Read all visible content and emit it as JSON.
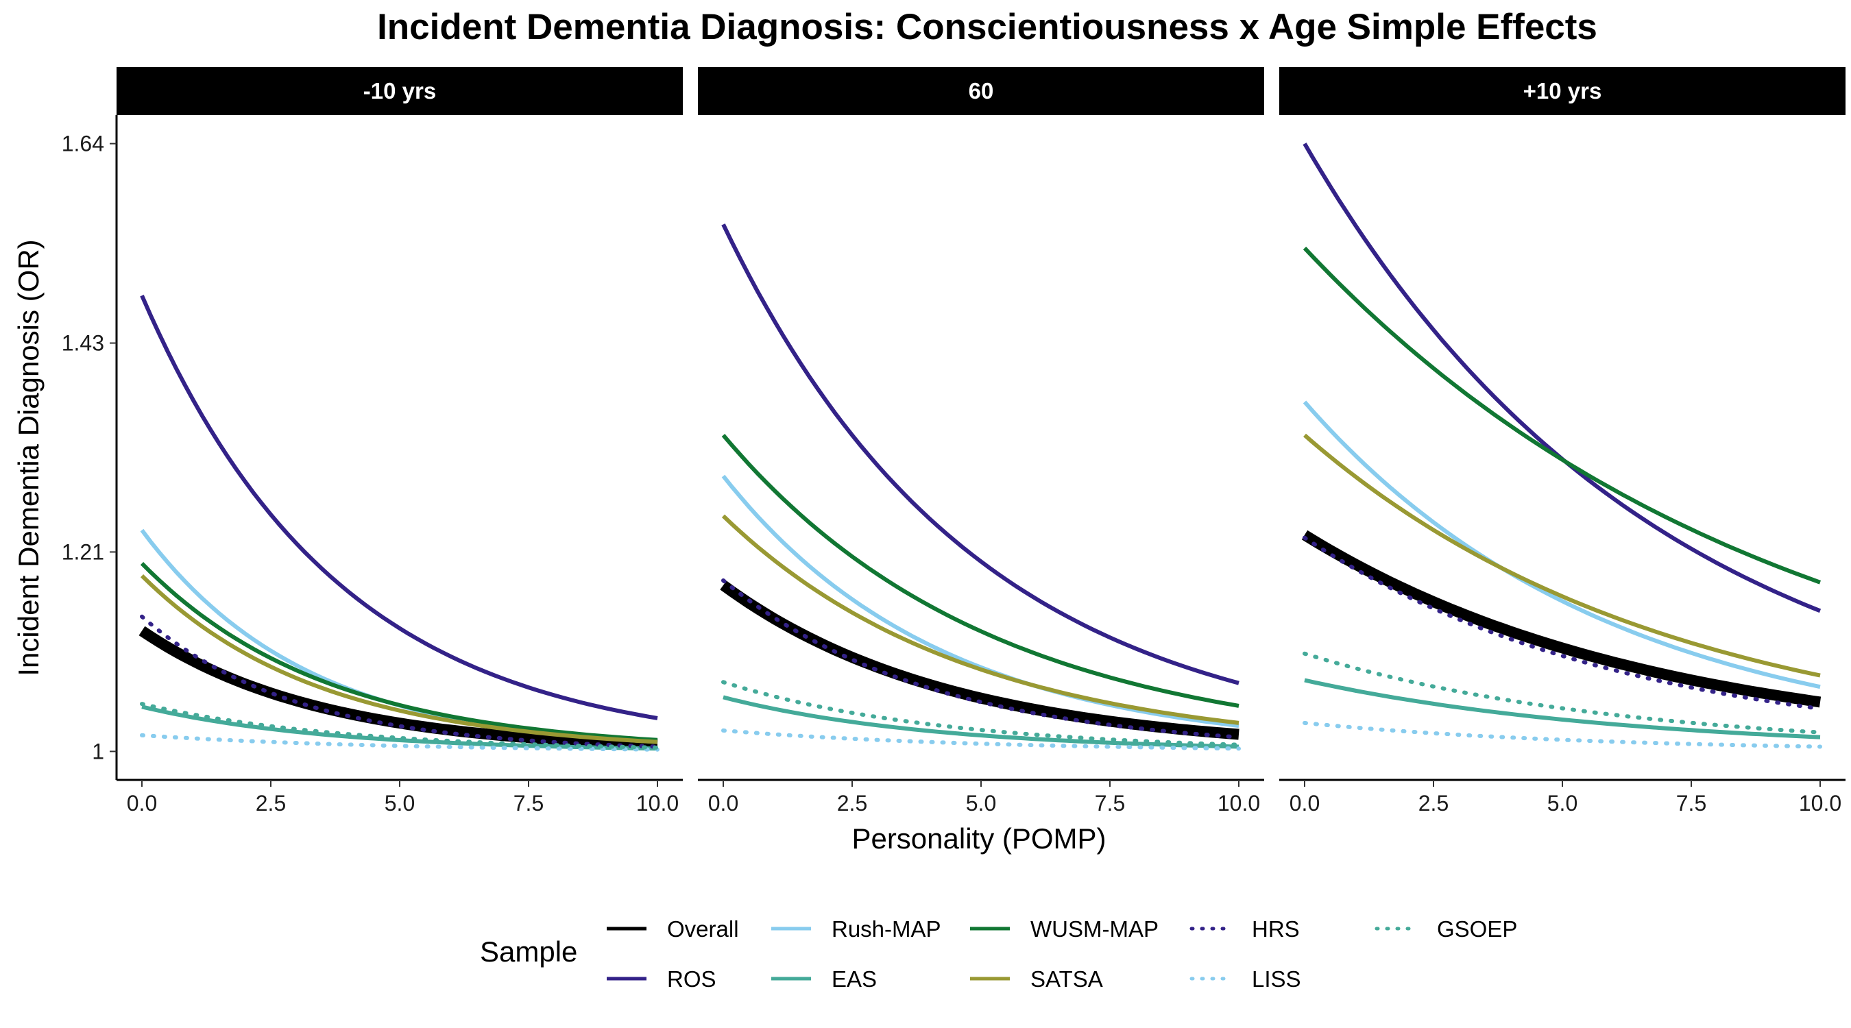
{
  "chart_data": {
    "type": "line",
    "title": "Incident Dementia Diagnosis: Conscientiousness x Age Simple Effects",
    "xlabel": "Personality (POMP)",
    "ylabel": "Incident Dementia Diagnosis (OR)",
    "xlim": [
      0,
      10
    ],
    "ylim": [
      0.97,
      1.67
    ],
    "x_ticks": [
      0,
      2.5,
      5,
      7.5,
      10
    ],
    "x_tick_labels": [
      "0.0",
      "2.5",
      "5.0",
      "7.5",
      "10.0"
    ],
    "y_ticks": [
      1,
      1.21,
      1.43,
      1.64
    ],
    "y_tick_labels": [
      "1",
      "1.21",
      "1.43",
      "1.64"
    ],
    "grid": false,
    "legend_title": "Sample",
    "legend_position": "bottom",
    "facets": [
      "-10 yrs",
      "60",
      "+10 yrs"
    ],
    "series": [
      {
        "name": "Overall",
        "color": "#000000",
        "linetype": "solid",
        "width": "thick",
        "values": {
          "-10 yrs": [
            1.127,
            1.007
          ],
          "60": [
            1.175,
            1.018
          ],
          "+10 yrs": [
            1.228,
            1.052
          ]
        }
      },
      {
        "name": "ROS",
        "color": "#332288",
        "linetype": "solid",
        "width": "normal",
        "values": {
          "-10 yrs": [
            1.48,
            1.035
          ],
          "60": [
            1.555,
            1.072
          ],
          "+10 yrs": [
            1.64,
            1.148
          ]
        }
      },
      {
        "name": "Rush-MAP",
        "color": "#88CCEE",
        "linetype": "solid",
        "width": "normal",
        "values": {
          "-10 yrs": [
            1.233,
            1.01
          ],
          "60": [
            1.29,
            1.027
          ],
          "+10 yrs": [
            1.368,
            1.068
          ]
        }
      },
      {
        "name": "EAS",
        "color": "#44AA99",
        "linetype": "solid",
        "width": "normal",
        "values": {
          "-10 yrs": [
            1.047,
            1.003
          ],
          "60": [
            1.057,
            1.005
          ],
          "+10 yrs": [
            1.075,
            1.015
          ]
        }
      },
      {
        "name": "WUSM-MAP",
        "color": "#117733",
        "linetype": "solid",
        "width": "normal",
        "values": {
          "-10 yrs": [
            1.198,
            1.012
          ],
          "60": [
            1.333,
            1.048
          ],
          "+10 yrs": [
            1.53,
            1.178
          ]
        }
      },
      {
        "name": "SATSA",
        "color": "#999933",
        "linetype": "solid",
        "width": "normal",
        "values": {
          "-10 yrs": [
            1.185,
            1.01
          ],
          "60": [
            1.248,
            1.03
          ],
          "+10 yrs": [
            1.333,
            1.08
          ]
        }
      },
      {
        "name": "HRS",
        "color": "#332288",
        "linetype": "dotted",
        "width": "normal",
        "values": {
          "-10 yrs": [
            1.142,
            1.005
          ],
          "60": [
            1.18,
            1.015
          ],
          "+10 yrs": [
            1.225,
            1.045
          ]
        }
      },
      {
        "name": "LISS",
        "color": "#88CCEE",
        "linetype": "dotted",
        "width": "normal",
        "values": {
          "-10 yrs": [
            1.017,
            1.002
          ],
          "60": [
            1.022,
            1.003
          ],
          "+10 yrs": [
            1.03,
            1.005
          ]
        }
      },
      {
        "name": "GSOEP",
        "color": "#44AA99",
        "linetype": "dotted",
        "width": "normal",
        "values": {
          "-10 yrs": [
            1.05,
            1.004
          ],
          "60": [
            1.073,
            1.007
          ],
          "+10 yrs": [
            1.103,
            1.02
          ]
        }
      }
    ]
  }
}
